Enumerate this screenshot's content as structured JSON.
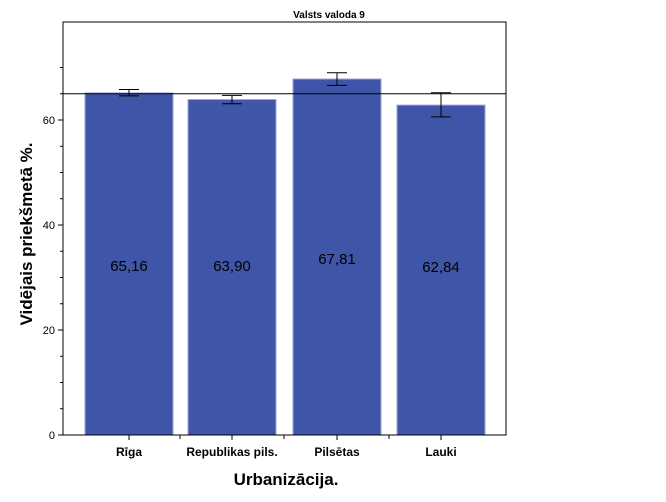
{
  "chart_data": {
    "type": "bar",
    "title": "Valsts valoda 9",
    "xlabel": "Urbanizācija.",
    "ylabel": "Vidējais priekšmetā %.",
    "categories": [
      "Rīga",
      "Republikas pils.",
      "Pilsētas",
      "Lauki"
    ],
    "values": [
      65.16,
      63.9,
      67.81,
      62.84
    ],
    "value_labels": [
      "65,16",
      "63,90",
      "67,81",
      "62,84"
    ],
    "error_low": [
      64.6,
      63.1,
      66.6,
      60.6
    ],
    "error_high": [
      65.8,
      64.7,
      69.0,
      65.2
    ],
    "reference_line": 65.0,
    "ylim": [
      0,
      83
    ],
    "yticks": [
      0,
      20,
      40,
      60
    ],
    "ytick_labels": [
      "0",
      "20",
      "40",
      "60"
    ],
    "grid": false,
    "colors": {
      "bar_fill": "#3f56a8",
      "bar_stroke": "#9aa6d6",
      "axis": "#000000"
    }
  }
}
